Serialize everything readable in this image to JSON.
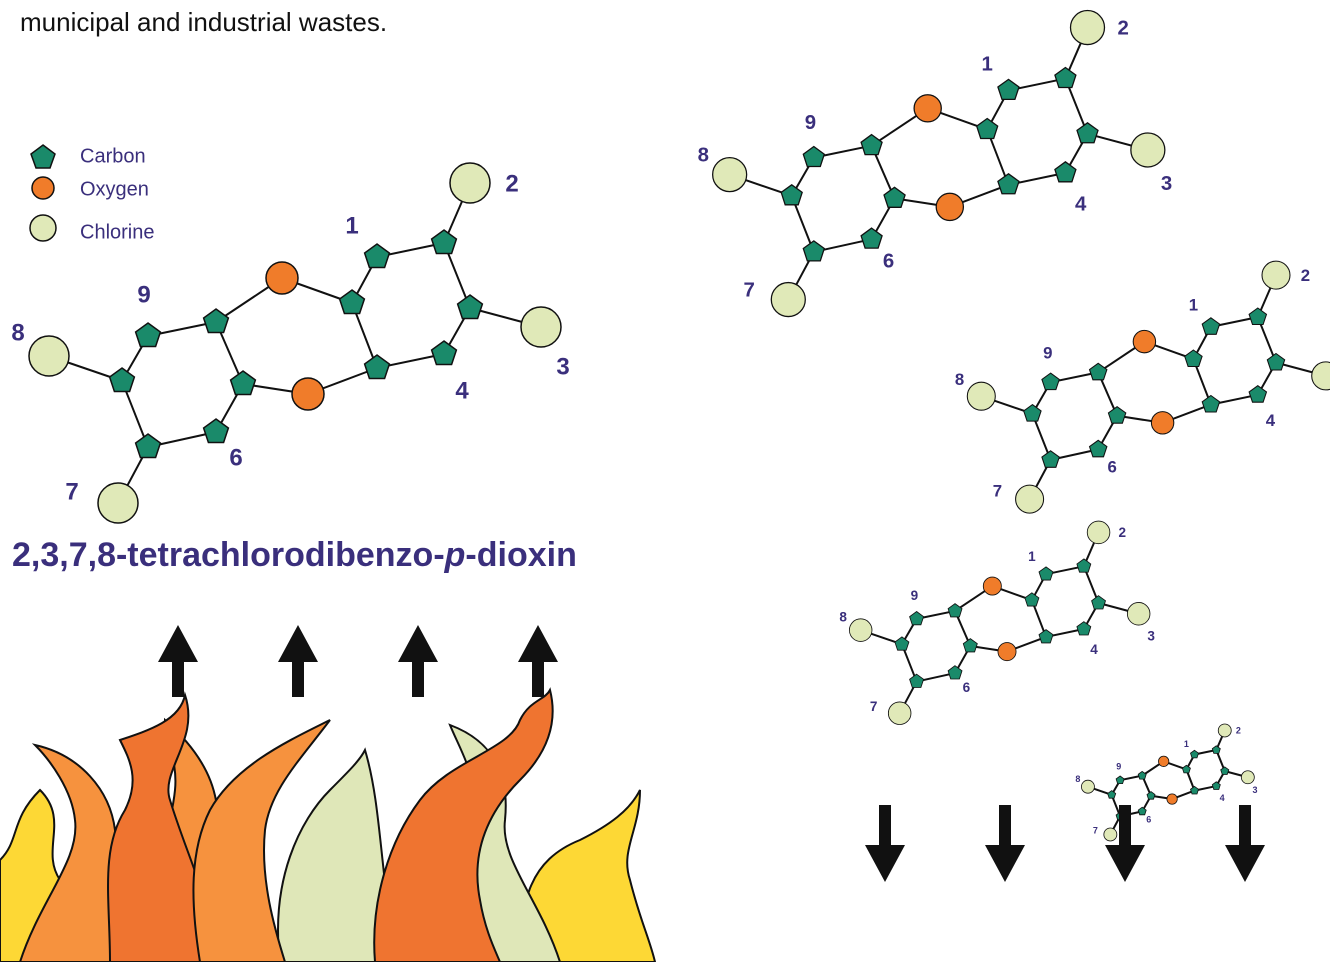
{
  "caption": "municipal and industrial wastes.",
  "legend": [
    "Carbon",
    "Oxygen",
    "Chlorine"
  ],
  "position_labels": [
    "1",
    "2",
    "3",
    "4",
    "6",
    "7",
    "8",
    "9"
  ],
  "compound_name": {
    "prefix": "2,3,7,8-tetrachlorodibenzo-",
    "italic": "p",
    "suffix": "-dioxin"
  }
}
